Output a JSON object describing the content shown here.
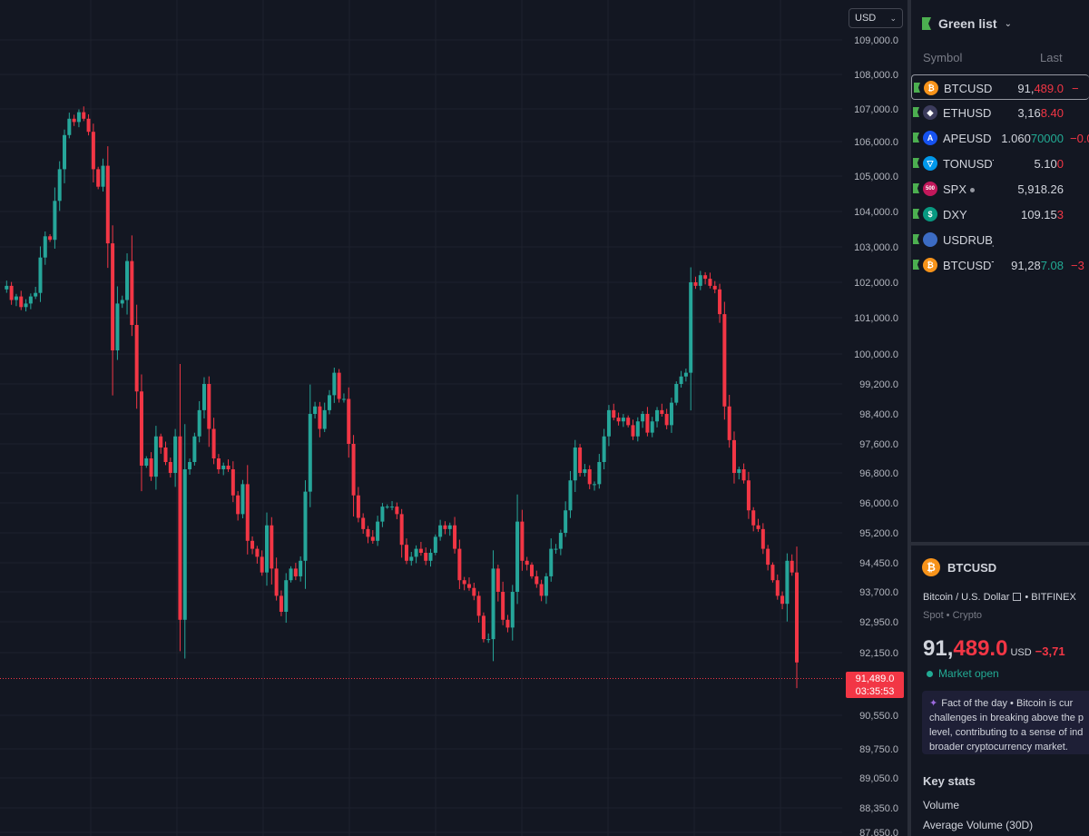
{
  "chart": {
    "currency_label": "USD",
    "price_axis_labels": [
      "109,000.0",
      "108,000.0",
      "107,000.0",
      "106,000.0",
      "105,000.0",
      "104,000.0",
      "103,000.0",
      "102,000.0",
      "101,000.0",
      "100,000.0",
      "99,200.0",
      "98,400.0",
      "97,600.0",
      "96,800.0",
      "96,000.0",
      "95,200.0",
      "94,450.0",
      "93,700.0",
      "92,950.0",
      "92,150.0",
      "90,550.0",
      "89,750.0",
      "89,050.0",
      "88,350.0",
      "87,650.0"
    ],
    "last_price_tag": "91,489.0",
    "countdown": "03:35:53",
    "colors": {
      "up": "#26a69a",
      "down": "#f23645",
      "background": "#131722",
      "grid": "#1e222d"
    }
  },
  "chart_data": {
    "type": "candlestick",
    "y_axis_ticks": [
      109000,
      108000,
      107000,
      106000,
      105000,
      104000,
      103000,
      102000,
      101000,
      100000,
      99200,
      98400,
      97600,
      96800,
      96000,
      95200,
      94450,
      93700,
      92950,
      92150,
      90550,
      89750,
      89050,
      88350,
      87650
    ],
    "current_price": 91489.0,
    "close_path": [
      101800,
      101900,
      101500,
      101600,
      101300,
      101400,
      101600,
      101700,
      102700,
      103300,
      103200,
      104300,
      105200,
      106200,
      106700,
      106600,
      106900,
      106700,
      106300,
      105200,
      104700,
      105300,
      103100,
      100100,
      101400,
      101500,
      102600,
      100800,
      99000,
      97000,
      97200,
      96700,
      97800,
      97500,
      97100,
      96800,
      97800,
      93000,
      96900,
      97100,
      97800,
      98500,
      99200,
      98000,
      97200,
      96900,
      97000,
      96900,
      96200,
      95700,
      96500,
      95000,
      94800,
      94600,
      94200,
      95400,
      94300,
      93600,
      93200,
      94000,
      94300,
      94100,
      94500,
      96300,
      98400,
      98600,
      98000,
      98500,
      98900,
      99500,
      98800,
      98800,
      97600,
      96200,
      95600,
      95300,
      95100,
      95000,
      95500,
      95900,
      95900,
      95900,
      95700,
      94900,
      94500,
      94600,
      94800,
      94700,
      94500,
      94700,
      95100,
      95400,
      95300,
      95400,
      94800,
      94000,
      93900,
      93800,
      93600,
      93100,
      92500,
      92500,
      94300,
      93700,
      93000,
      92800,
      93700,
      95500,
      94500,
      94400,
      94100,
      93900,
      93600,
      94100,
      94800,
      94800,
      95200,
      95800,
      96600,
      97500,
      96800,
      96900,
      96500,
      96500,
      97100,
      97800,
      98500,
      98300,
      98200,
      98300,
      98100,
      97800,
      98200,
      98400,
      97900,
      98200,
      98500,
      98400,
      98100,
      98700,
      99200,
      99400,
      99500,
      102000,
      101900,
      102200,
      102100,
      101900,
      101800,
      101100,
      98600,
      97700,
      96800,
      96900,
      96600,
      95800,
      95400,
      95300,
      94800,
      94400,
      94000,
      93600,
      93400,
      94500,
      94200,
      91900
    ]
  },
  "watchlist": {
    "title": "Green list",
    "col_symbol": "Symbol",
    "col_last": "Last",
    "rows": [
      {
        "symbol": "BTCUSD",
        "last_a": "91,",
        "last_b": "489.0",
        "change": "−",
        "icon": "btc-icon",
        "icon_text": "₿",
        "icon_color": "#f7931a"
      },
      {
        "symbol": "ETHUSD",
        "last_a": "3,16",
        "last_b": "8.40",
        "change": "",
        "icon": "eth-icon",
        "icon_text": "◆",
        "icon_color": "#3c3c5d"
      },
      {
        "symbol": "APEUSD",
        "last_a": "1.060",
        "last_b": "70000",
        "change": "−0.0",
        "icon": "ape-icon",
        "icon_text": "A",
        "icon_color": "#1652f0"
      },
      {
        "symbol": "TONUSDT",
        "last_a": "5.10",
        "last_b": "0",
        "change": "",
        "icon": "ton-icon",
        "icon_text": "▽",
        "icon_color": "#0098ea"
      },
      {
        "symbol": "SPX",
        "last_a": "5,918.26",
        "last_b": "",
        "change": "",
        "icon": "spx-icon",
        "icon_text": "500",
        "icon_color": "#c2185b"
      },
      {
        "symbol": "DXY",
        "last_a": "109.15",
        "last_b": "3",
        "change": "",
        "icon": "dxy-icon",
        "icon_text": "$",
        "icon_color": "#089981"
      },
      {
        "symbol": "USDRUB_T",
        "last_a": "",
        "last_b": "",
        "change": "",
        "icon": "us-flag-icon",
        "icon_text": "",
        "icon_color": "#3c6cc4"
      },
      {
        "symbol": "BTCUSDT",
        "last_a": "91,28",
        "last_b": "7.08",
        "change": "−3",
        "icon": "btc-icon",
        "icon_text": "₿",
        "icon_color": "#f7931a"
      }
    ]
  },
  "details": {
    "symbol": "BTCUSD",
    "description": "Bitcoin / U.S. Dollar",
    "exchange": "BITFINEX",
    "type": "Spot • Crypto",
    "price_a": "91,",
    "price_b": "489.0",
    "currency": "USD",
    "change": "−3,71",
    "market_status": "Market open",
    "fact_title": "Fact of the day",
    "fact_text_1": "• Bitcoin is cur",
    "fact_text_2": "challenges in breaking above the p",
    "fact_text_3": "level, contributing to a sense of ind",
    "fact_text_4": "broader cryptocurrency market.",
    "key_stats_title": "Key stats",
    "stat_volume": "Volume",
    "stat_avg_volume": "Average Volume (30D)"
  }
}
